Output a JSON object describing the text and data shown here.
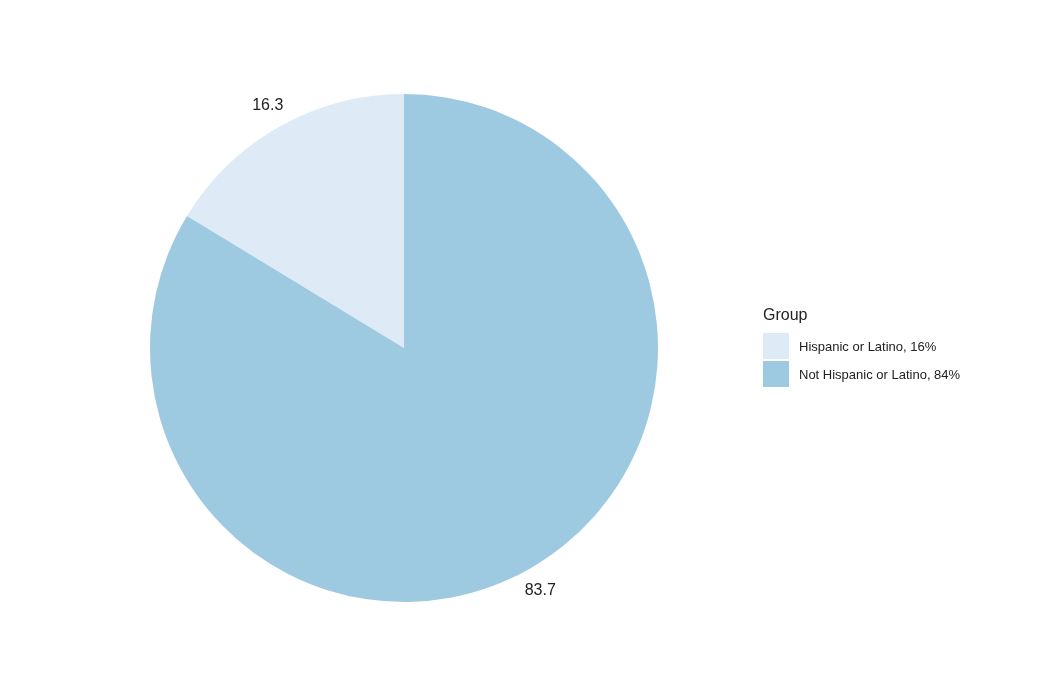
{
  "chart_data": {
    "type": "pie",
    "legend_title": "Group",
    "categories": [
      "Hispanic or Latino, 16%",
      "Not Hispanic or Latino, 84%"
    ],
    "values": [
      16.3,
      83.7
    ],
    "colors": [
      "#deebf7",
      "#9ecae1"
    ],
    "data_labels": true,
    "legend": "right"
  }
}
